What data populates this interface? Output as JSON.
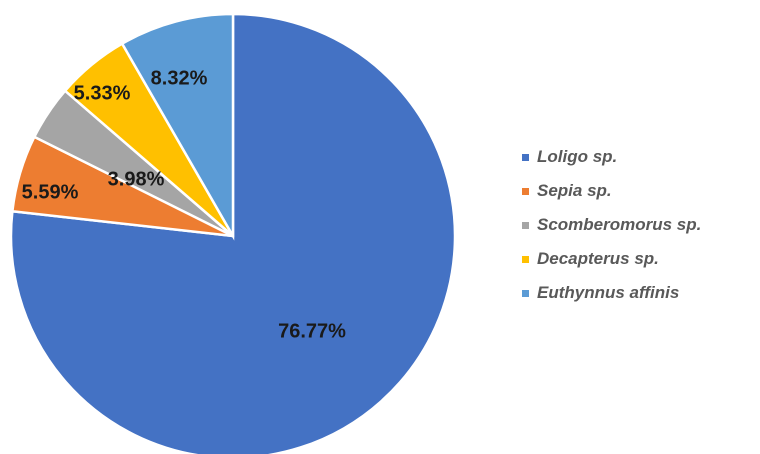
{
  "chart_data": {
    "type": "pie",
    "title": "",
    "start_angle_deg": 0,
    "direction": "clockwise",
    "slices": [
      {
        "label": "Loligo sp.",
        "value": 76.77,
        "display": "76.77%",
        "color": "#4472C4"
      },
      {
        "label": "Sepia sp.",
        "value": 5.59,
        "display": "5.59%",
        "color": "#ED7D31"
      },
      {
        "label": "Scomberomorus sp.",
        "value": 3.98,
        "display": "3.98%",
        "color": "#A5A5A5"
      },
      {
        "label": "Decapterus sp.",
        "value": 5.33,
        "display": "5.33%",
        "color": "#FFC000"
      },
      {
        "label": "Euthynnus affinis",
        "value": 8.32,
        "display": "8.32%",
        "color": "#5B9BD5"
      }
    ],
    "legend_position": "right"
  }
}
